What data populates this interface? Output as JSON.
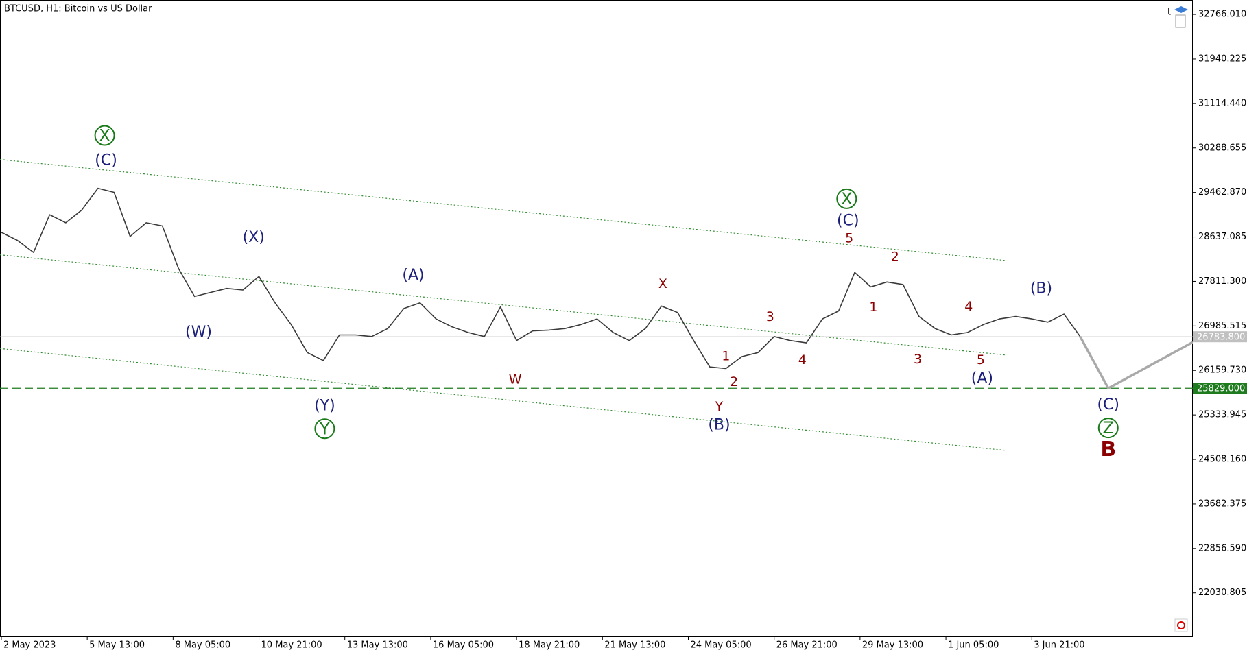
{
  "chart_data": {
    "type": "line",
    "title": "BTCUSD, H1:  Bitcoin vs US Dollar",
    "xlim": [
      "2023-05-02 20:00",
      "2023-06-08 21:00"
    ],
    "ylim": [
      21213,
      33034
    ],
    "grid": false,
    "xticks": [
      {
        "value": "2023-05-02 21:00",
        "label": "2 May 2023"
      },
      {
        "value": "2023-05-05 13:00",
        "label": "5 May 13:00"
      },
      {
        "value": "2023-05-08 05:00",
        "label": "8 May 05:00"
      },
      {
        "value": "2023-05-10 21:00",
        "label": "10 May 21:00"
      },
      {
        "value": "2023-05-13 13:00",
        "label": "13 May 13:00"
      },
      {
        "value": "2023-05-16 05:00",
        "label": "16 May 05:00"
      },
      {
        "value": "2023-05-18 21:00",
        "label": "18 May 21:00"
      },
      {
        "value": "2023-05-21 13:00",
        "label": "21 May 13:00"
      },
      {
        "value": "2023-05-24 05:00",
        "label": "24 May 05:00"
      },
      {
        "value": "2023-05-26 21:00",
        "label": "26 May 21:00"
      },
      {
        "value": "2023-05-29 13:00",
        "label": "29 May 13:00"
      },
      {
        "value": "2023-06-01 05:00",
        "label": "1 Jun 05:00"
      },
      {
        "value": "2023-06-03 21:00",
        "label": "3 Jun 21:00"
      }
    ],
    "yticks": [
      {
        "value": 32766.01,
        "label": "32766.010"
      },
      {
        "value": 31940.225,
        "label": "31940.225"
      },
      {
        "value": 31114.44,
        "label": "31114.440"
      },
      {
        "value": 30288.655,
        "label": "30288.655"
      },
      {
        "value": 29462.87,
        "label": "29462.870"
      },
      {
        "value": 28637.085,
        "label": "28637.085"
      },
      {
        "value": 27811.3,
        "label": "27811.300"
      },
      {
        "value": 26985.515,
        "label": "26985.515"
      },
      {
        "value": 26159.73,
        "label": "26159.730"
      },
      {
        "value": 25333.945,
        "label": "25333.945"
      },
      {
        "value": 24508.16,
        "label": "24508.160"
      },
      {
        "value": 23682.375,
        "label": "23682.375"
      },
      {
        "value": 22856.59,
        "label": "22856.590"
      },
      {
        "value": 22030.805,
        "label": "22030.805"
      }
    ],
    "x": [
      "2023-05-02 21:00",
      "2023-05-03 09:00",
      "2023-05-03 21:00",
      "2023-05-04 09:00",
      "2023-05-04 21:00",
      "2023-05-05 09:00",
      "2023-05-05 21:00",
      "2023-05-06 09:00",
      "2023-05-06 21:00",
      "2023-05-07 09:00",
      "2023-05-07 21:00",
      "2023-05-08 09:00",
      "2023-05-08 21:00",
      "2023-05-09 09:00",
      "2023-05-09 21:00",
      "2023-05-10 09:00",
      "2023-05-10 21:00",
      "2023-05-11 09:00",
      "2023-05-11 21:00",
      "2023-05-12 09:00",
      "2023-05-12 21:00",
      "2023-05-13 09:00",
      "2023-05-13 21:00",
      "2023-05-14 09:00",
      "2023-05-14 21:00",
      "2023-05-15 09:00",
      "2023-05-15 21:00",
      "2023-05-16 09:00",
      "2023-05-16 21:00",
      "2023-05-17 09:00",
      "2023-05-17 21:00",
      "2023-05-18 09:00",
      "2023-05-18 21:00",
      "2023-05-19 09:00",
      "2023-05-19 21:00",
      "2023-05-20 09:00",
      "2023-05-20 21:00",
      "2023-05-21 09:00",
      "2023-05-21 21:00",
      "2023-05-22 09:00",
      "2023-05-22 21:00",
      "2023-05-23 09:00",
      "2023-05-23 21:00",
      "2023-05-24 09:00",
      "2023-05-24 21:00",
      "2023-05-25 09:00",
      "2023-05-25 21:00",
      "2023-05-26 09:00",
      "2023-05-26 21:00",
      "2023-05-27 09:00",
      "2023-05-27 21:00",
      "2023-05-28 09:00",
      "2023-05-28 21:00",
      "2023-05-29 09:00",
      "2023-05-29 21:00",
      "2023-05-30 09:00",
      "2023-05-30 21:00",
      "2023-05-31 09:00",
      "2023-05-31 21:00",
      "2023-06-01 09:00",
      "2023-06-01 21:00",
      "2023-06-02 09:00",
      "2023-06-02 21:00",
      "2023-06-03 09:00",
      "2023-06-03 21:00",
      "2023-06-04 09:00",
      "2023-06-04 21:00",
      "2023-06-05 09:00"
    ],
    "series": [
      {
        "color": "#3a3a3a",
        "values": [
          28722,
          28573,
          28350,
          29049,
          28900,
          29138,
          29540,
          29465,
          28647,
          28900,
          28841,
          28053,
          27532,
          27607,
          27681,
          27651,
          27904,
          27413,
          27012,
          26491,
          26342,
          26818,
          26818,
          26789,
          26937,
          27309,
          27413,
          27116,
          26967,
          26863,
          26789,
          27339,
          26714,
          26893,
          26908,
          26937,
          27012,
          27116,
          26863,
          26714,
          26937,
          27354,
          27235,
          26714,
          26224,
          26194,
          26417,
          26491,
          26789,
          26714,
          26670,
          27116,
          27264,
          27978,
          27710,
          27800,
          27755,
          27160,
          26937,
          26818,
          26863,
          27012,
          27116,
          27160,
          27116,
          27056,
          27205,
          26789
        ]
      }
    ],
    "projection": {
      "color": "#a9a9a9",
      "x": [
        "2023-06-05 09:00",
        "2023-06-06 06:00",
        "2023-06-08 21:00"
      ],
      "values": [
        26789,
        25829,
        26684
      ]
    },
    "trendlines": [
      {
        "color": "#2e8b2e",
        "x": [
          "2023-05-02 20:00",
          "2023-06-03 01:00"
        ],
        "values": [
          30075,
          28201
        ]
      },
      {
        "color": "#2e8b2e",
        "x": [
          "2023-05-02 20:00",
          "2023-06-03 01:00"
        ],
        "values": [
          28305,
          26447
        ]
      },
      {
        "color": "#2e8b2e",
        "x": [
          "2023-05-02 20:00",
          "2023-06-03 01:00"
        ],
        "values": [
          26566,
          24677
        ]
      }
    ],
    "hlines": [
      {
        "value": 26783.8,
        "label": "26783.800",
        "color": "#c0c0c0",
        "dashed": false
      },
      {
        "value": 25829,
        "label": "25829.000",
        "color": "#1e7b1e",
        "dashed": true
      }
    ],
    "annotations": [
      {
        "text": "X",
        "x": "2023-05-06 02:00",
        "y": 30521,
        "color": "#1a7a1a",
        "circled": true
      },
      {
        "text": "(C)",
        "x": "2023-05-06 03:00",
        "y": 30060,
        "color": "#1b1f7a"
      },
      {
        "text": "(X)",
        "x": "2023-05-10 17:00",
        "y": 28632,
        "color": "#1b1f7a"
      },
      {
        "text": "(W)",
        "x": "2023-05-09 00:00",
        "y": 26878,
        "color": "#1b1f7a"
      },
      {
        "text": "(Y)",
        "x": "2023-05-12 22:00",
        "y": 25510,
        "color": "#1b1f7a"
      },
      {
        "text": "Y",
        "x": "2023-05-12 22:00",
        "y": 25078,
        "color": "#1a7a1a",
        "circled": true
      },
      {
        "text": "(A)",
        "x": "2023-05-15 16:00",
        "y": 27934,
        "color": "#1b1f7a"
      },
      {
        "text": "W",
        "x": "2023-05-18 20:00",
        "y": 26000,
        "color": "#8b0000"
      },
      {
        "text": "X",
        "x": "2023-05-23 10:00",
        "y": 27770,
        "color": "#8b0000"
      },
      {
        "text": "Y",
        "x": "2023-05-25 04:00",
        "y": 25495,
        "color": "#8b0000"
      },
      {
        "text": "(B)",
        "x": "2023-05-25 04:00",
        "y": 25153,
        "color": "#1b1f7a"
      },
      {
        "text": "1",
        "x": "2023-05-25 09:00",
        "y": 26432,
        "color": "#8b0000"
      },
      {
        "text": "2",
        "x": "2023-05-25 15:00",
        "y": 25956,
        "color": "#8b0000"
      },
      {
        "text": "3",
        "x": "2023-05-26 18:00",
        "y": 27160,
        "color": "#8b0000"
      },
      {
        "text": "4",
        "x": "2023-05-27 18:00",
        "y": 26357,
        "color": "#8b0000"
      },
      {
        "text": "5",
        "x": "2023-05-29 05:00",
        "y": 28618,
        "color": "#8b0000"
      },
      {
        "text": "(C)",
        "x": "2023-05-29 04:00",
        "y": 28945,
        "color": "#1b1f7a"
      },
      {
        "text": "X",
        "x": "2023-05-29 03:00",
        "y": 29346,
        "color": "#1a7a1a",
        "circled": true
      },
      {
        "text": "2",
        "x": "2023-05-30 15:00",
        "y": 28276,
        "color": "#8b0000"
      },
      {
        "text": "1",
        "x": "2023-05-29 23:00",
        "y": 27339,
        "color": "#8b0000"
      },
      {
        "text": "3",
        "x": "2023-05-31 08:00",
        "y": 26372,
        "color": "#8b0000"
      },
      {
        "text": "4",
        "x": "2023-06-01 22:00",
        "y": 27354,
        "color": "#8b0000"
      },
      {
        "text": "5",
        "x": "2023-06-02 07:00",
        "y": 26357,
        "color": "#8b0000"
      },
      {
        "text": "(A)",
        "x": "2023-06-02 08:00",
        "y": 26015,
        "color": "#1b1f7a"
      },
      {
        "text": "(B)",
        "x": "2023-06-04 04:00",
        "y": 27681,
        "color": "#1b1f7a"
      },
      {
        "text": "(C)",
        "x": "2023-06-06 06:00",
        "y": 25525,
        "color": "#1b1f7a"
      },
      {
        "text": "Z",
        "x": "2023-06-06 06:00",
        "y": 25093,
        "color": "#1a7a1a",
        "circled": true
      },
      {
        "text": "B",
        "x": "2023-06-06 06:00",
        "y": 24692,
        "color": "#8b0000",
        "bold": true
      }
    ]
  }
}
